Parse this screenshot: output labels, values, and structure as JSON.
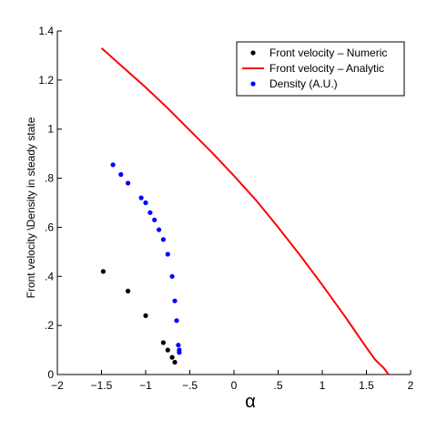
{
  "chart_data": {
    "type": "scatter",
    "xlabel": "α",
    "ylabel": "Front velocity \\Density in steady state",
    "xlim": [
      -2,
      2
    ],
    "ylim": [
      0,
      1.4
    ],
    "xticks": [
      -2,
      -1.5,
      -1,
      -0.5,
      0,
      0.5,
      1,
      1.5,
      2
    ],
    "yticks": [
      0,
      0.2,
      0.4,
      0.6,
      0.8,
      1,
      1.2,
      1.4
    ],
    "grid": false,
    "legend_position": "top-right",
    "series": [
      {
        "name": "Front velocity – Numeric",
        "kind": "scatter",
        "color": "#000000",
        "x": [
          -1.48,
          -1.2,
          -1.0,
          -0.8,
          -0.75,
          -0.7,
          -0.67
        ],
        "y": [
          0.42,
          0.34,
          0.24,
          0.13,
          0.1,
          0.07,
          0.05
        ]
      },
      {
        "name": "Front velocity – Analytic",
        "kind": "line",
        "color": "#ff0000",
        "x": [
          -1.5,
          -1.25,
          -1.0,
          -0.75,
          -0.5,
          -0.25,
          0,
          0.25,
          0.5,
          0.75,
          1.0,
          1.25,
          1.5,
          1.6,
          1.7,
          1.75
        ],
        "y": [
          1.33,
          1.25,
          1.17,
          1.085,
          0.995,
          0.905,
          0.81,
          0.71,
          0.6,
          0.485,
          0.365,
          0.24,
          0.11,
          0.06,
          0.025,
          0.0
        ]
      },
      {
        "name": "Density (A.U.)",
        "kind": "scatter",
        "color": "#0000ff",
        "x": [
          -1.37,
          -1.28,
          -1.2,
          -1.05,
          -1.0,
          -0.95,
          -0.9,
          -0.85,
          -0.8,
          -0.75,
          -0.7,
          -0.67,
          -0.65,
          -0.63,
          -0.62,
          -0.62
        ],
        "y": [
          0.855,
          0.815,
          0.78,
          0.72,
          0.7,
          0.66,
          0.63,
          0.59,
          0.55,
          0.49,
          0.4,
          0.3,
          0.22,
          0.12,
          0.1,
          0.09
        ]
      }
    ]
  }
}
